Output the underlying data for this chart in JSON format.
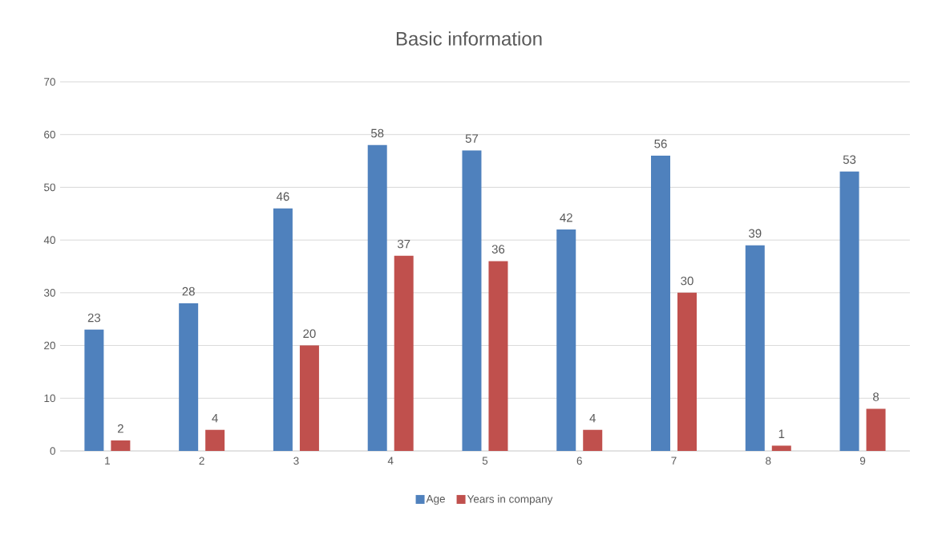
{
  "chart_data": {
    "type": "bar",
    "title": "Basic information",
    "categories": [
      "1",
      "2",
      "3",
      "4",
      "5",
      "6",
      "7",
      "8",
      "9"
    ],
    "series": [
      {
        "name": "Age",
        "color": "#4f81bd",
        "values": [
          23,
          28,
          46,
          58,
          57,
          42,
          56,
          39,
          53
        ]
      },
      {
        "name": "Years in company",
        "color": "#c0504d",
        "values": [
          2,
          4,
          20,
          37,
          36,
          4,
          30,
          1,
          8
        ]
      }
    ],
    "ylim": [
      0,
      70
    ],
    "yticks": [
      0,
      10,
      20,
      30,
      40,
      50,
      60,
      70
    ],
    "grid": "y",
    "legend": "bottom",
    "data_labels": true
  }
}
